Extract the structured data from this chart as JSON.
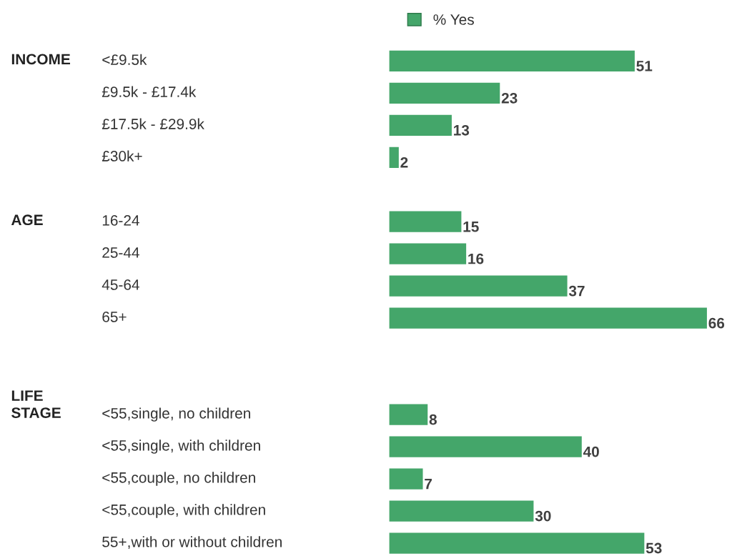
{
  "chart_data": {
    "type": "bar",
    "orientation": "horizontal",
    "data_labels": true,
    "legend": "top",
    "categories": [
      "<£9.5k",
      "£9.5k - £17.4k",
      "£17.5k - £29.9k",
      "£30k+",
      null,
      "16-24",
      "25-44",
      "45-64",
      "65+",
      null,
      null,
      "<55,single, no children",
      "<55,single, with children",
      "<55,couple, no children",
      "<55,couple, with children",
      "55+,with or without children"
    ],
    "series": [
      {
        "name": "% Yes",
        "color": "#44a66a",
        "values": [
          51,
          23,
          13,
          2,
          null,
          15,
          16,
          37,
          66,
          null,
          null,
          8,
          40,
          7,
          30,
          53
        ]
      }
    ],
    "annotations": [
      "INCOME",
      "AGE",
      "LIFE\nSTAGE"
    ]
  }
}
